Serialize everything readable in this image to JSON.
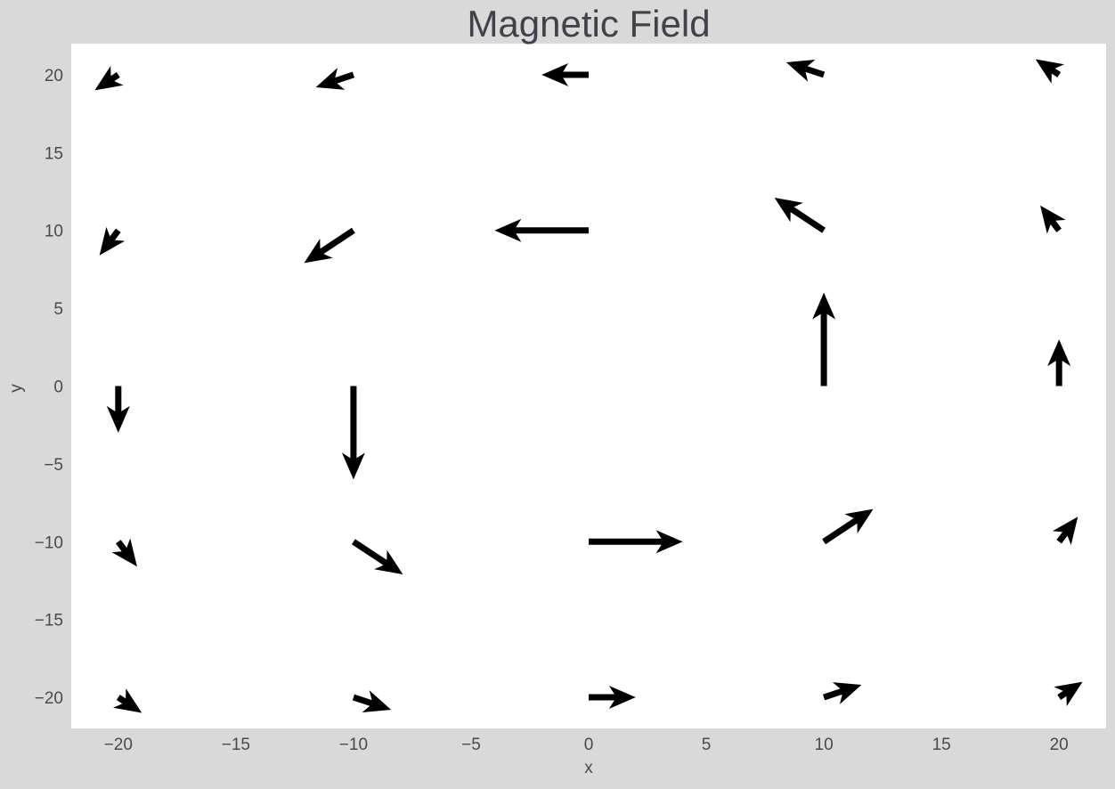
{
  "chart_data": {
    "type": "quiver",
    "title": "Magnetic Field",
    "xlabel": "x",
    "ylabel": "y",
    "xlim": [
      -22,
      22
    ],
    "ylim": [
      -22,
      22
    ],
    "xticks": [
      -20,
      -15,
      -10,
      -5,
      0,
      5,
      10,
      15,
      20
    ],
    "yticks": [
      -20,
      -15,
      -10,
      -5,
      0,
      5,
      10,
      15,
      20
    ],
    "grid": false,
    "colors": {
      "background": "#d9d9d9",
      "plot_area": "#ffffff",
      "arrow": "#000000",
      "text": "#4a4a4a",
      "title": "#404248"
    },
    "vectors": [
      {
        "x": -20,
        "y": -20,
        "u": 1.0,
        "v": -1.0
      },
      {
        "x": -20,
        "y": -10,
        "u": 0.8,
        "v": -1.6
      },
      {
        "x": -20,
        "y": 0,
        "u": 0.0,
        "v": -3.0
      },
      {
        "x": -20,
        "y": 10,
        "u": -0.8,
        "v": -1.6
      },
      {
        "x": -20,
        "y": 20,
        "u": -1.0,
        "v": -1.0
      },
      {
        "x": -10,
        "y": -20,
        "u": 1.6,
        "v": -0.8
      },
      {
        "x": -10,
        "y": -10,
        "u": 2.1,
        "v": -2.1
      },
      {
        "x": -10,
        "y": 0,
        "u": 0.0,
        "v": -6.0
      },
      {
        "x": -10,
        "y": 10,
        "u": -2.1,
        "v": -2.1
      },
      {
        "x": -10,
        "y": 20,
        "u": -1.6,
        "v": -0.8
      },
      {
        "x": 0,
        "y": -20,
        "u": 2.0,
        "v": 0.0
      },
      {
        "x": 0,
        "y": -10,
        "u": 4.0,
        "v": 0.0
      },
      {
        "x": 0,
        "y": 10,
        "u": -4.0,
        "v": 0.0
      },
      {
        "x": 0,
        "y": 20,
        "u": -2.0,
        "v": 0.0
      },
      {
        "x": 10,
        "y": -20,
        "u": 1.6,
        "v": 0.8
      },
      {
        "x": 10,
        "y": -10,
        "u": 2.1,
        "v": 2.1
      },
      {
        "x": 10,
        "y": 0,
        "u": 0.0,
        "v": 6.0
      },
      {
        "x": 10,
        "y": 10,
        "u": -2.1,
        "v": 2.1
      },
      {
        "x": 10,
        "y": 20,
        "u": -1.6,
        "v": 0.8
      },
      {
        "x": 20,
        "y": -20,
        "u": 1.0,
        "v": 1.0
      },
      {
        "x": 20,
        "y": -10,
        "u": 0.8,
        "v": 1.6
      },
      {
        "x": 20,
        "y": 0,
        "u": 0.0,
        "v": 3.0
      },
      {
        "x": 20,
        "y": 10,
        "u": -0.8,
        "v": 1.6
      },
      {
        "x": 20,
        "y": 20,
        "u": -1.0,
        "v": 1.0
      }
    ]
  }
}
